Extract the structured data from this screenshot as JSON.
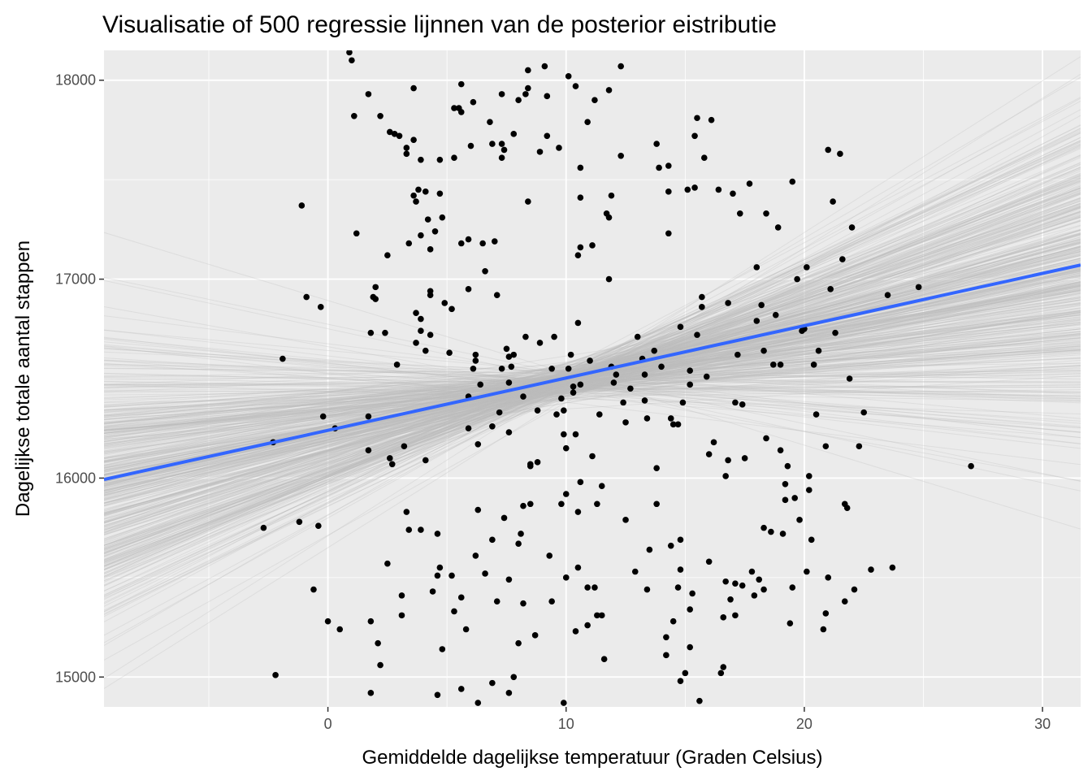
{
  "chart_data": {
    "type": "scatter",
    "title": "Visualisatie of 500 regressie lijnnen van de posterior eistributie",
    "xlabel": "Gemiddelde dagelijkse temperatuur (Graden Celsius)",
    "ylabel": "Dagelijkse totale aantal stappen",
    "xlim": [
      -9.4,
      31.6
    ],
    "ylim": [
      14850,
      18150
    ],
    "x_ticks": [
      0,
      10,
      20,
      30
    ],
    "y_ticks": [
      15000,
      16000,
      17000,
      18000
    ],
    "x_tick_labels": [
      "0",
      "10",
      "20",
      "30"
    ],
    "y_tick_labels": [
      "15000",
      "16000",
      "17000",
      "18000"
    ],
    "grid": true,
    "legend": "none",
    "colors": {
      "panel_background": "#ebebeb",
      "grid": "#ffffff",
      "points": "#000000",
      "posterior_lines": "#bebebe",
      "mean_line": "#3366ff"
    },
    "mean_line": {
      "intercept": 16240,
      "slope": 26.3
    },
    "posterior_lines": {
      "count": 500,
      "pivot_x": 10,
      "pivot_y": 16483,
      "intercept_sd": 40,
      "slope_sd": 18
    },
    "points": [
      [
        -2.7,
        15750
      ],
      [
        -2.3,
        16180
      ],
      [
        -2.2,
        15010
      ],
      [
        -1.9,
        16600
      ],
      [
        -1.2,
        15780
      ],
      [
        -1.1,
        17370
      ],
      [
        -0.9,
        16910
      ],
      [
        -0.6,
        15440
      ],
      [
        -0.4,
        15760
      ],
      [
        -0.3,
        16860
      ],
      [
        -0.2,
        16310
      ],
      [
        0.0,
        15280
      ],
      [
        0.3,
        16250
      ],
      [
        0.5,
        15240
      ],
      [
        0.9,
        18140
      ],
      [
        1.0,
        18100
      ],
      [
        1.1,
        17820
      ],
      [
        1.2,
        17230
      ],
      [
        1.7,
        16140
      ],
      [
        1.7,
        16310
      ],
      [
        1.7,
        17930
      ],
      [
        1.8,
        16730
      ],
      [
        1.8,
        15280
      ],
      [
        1.8,
        14920
      ],
      [
        1.9,
        16910
      ],
      [
        2.0,
        16960
      ],
      [
        2.0,
        16900
      ],
      [
        2.1,
        15170
      ],
      [
        2.2,
        17820
      ],
      [
        2.2,
        15060
      ],
      [
        2.4,
        16730
      ],
      [
        2.5,
        17120
      ],
      [
        2.5,
        15570
      ],
      [
        2.6,
        16100
      ],
      [
        2.6,
        17740
      ],
      [
        2.7,
        16070
      ],
      [
        2.8,
        17730
      ],
      [
        2.9,
        16570
      ],
      [
        3.0,
        17720
      ],
      [
        3.1,
        15310
      ],
      [
        3.1,
        15410
      ],
      [
        3.2,
        16160
      ],
      [
        3.3,
        15830
      ],
      [
        3.3,
        17660
      ],
      [
        3.3,
        17630
      ],
      [
        3.4,
        15740
      ],
      [
        3.4,
        17180
      ],
      [
        3.6,
        17960
      ],
      [
        3.6,
        17420
      ],
      [
        3.6,
        17700
      ],
      [
        3.7,
        16680
      ],
      [
        3.7,
        17390
      ],
      [
        3.7,
        16830
      ],
      [
        3.8,
        17450
      ],
      [
        3.9,
        16740
      ],
      [
        3.9,
        17600
      ],
      [
        3.9,
        17220
      ],
      [
        3.9,
        16800
      ],
      [
        3.9,
        15740
      ],
      [
        4.1,
        16090
      ],
      [
        4.1,
        16640
      ],
      [
        4.1,
        17440
      ],
      [
        4.2,
        17300
      ],
      [
        4.3,
        16720
      ],
      [
        4.3,
        16940
      ],
      [
        4.3,
        17150
      ],
      [
        4.3,
        16920
      ],
      [
        4.4,
        15430
      ],
      [
        4.5,
        17240
      ],
      [
        4.6,
        15720
      ],
      [
        4.6,
        15510
      ],
      [
        4.6,
        14910
      ],
      [
        4.7,
        15550
      ],
      [
        4.7,
        17430
      ],
      [
        4.7,
        17600
      ],
      [
        4.8,
        17310
      ],
      [
        4.8,
        15140
      ],
      [
        4.9,
        16880
      ],
      [
        5.1,
        16630
      ],
      [
        5.2,
        16850
      ],
      [
        5.2,
        15510
      ],
      [
        5.3,
        17610
      ],
      [
        5.3,
        17860
      ],
      [
        5.3,
        15330
      ],
      [
        5.5,
        17860
      ],
      [
        5.6,
        17180
      ],
      [
        5.6,
        15400
      ],
      [
        5.6,
        17840
      ],
      [
        5.6,
        17980
      ],
      [
        5.6,
        14940
      ],
      [
        5.8,
        15240
      ],
      [
        5.9,
        16250
      ],
      [
        5.9,
        16950
      ],
      [
        5.9,
        16410
      ],
      [
        5.9,
        17200
      ],
      [
        6.0,
        17670
      ],
      [
        6.1,
        16550
      ],
      [
        6.1,
        17890
      ],
      [
        6.2,
        16590
      ],
      [
        6.2,
        15610
      ],
      [
        6.2,
        16620
      ],
      [
        6.3,
        15840
      ],
      [
        6.3,
        14870
      ],
      [
        6.3,
        16170
      ],
      [
        6.4,
        16470
      ],
      [
        6.5,
        17180
      ],
      [
        6.6,
        17040
      ],
      [
        6.6,
        15520
      ],
      [
        6.8,
        17790
      ],
      [
        6.9,
        15690
      ],
      [
        6.9,
        16260
      ],
      [
        6.9,
        17680
      ],
      [
        6.9,
        14970
      ],
      [
        7.0,
        17190
      ],
      [
        7.1,
        16920
      ],
      [
        7.1,
        15380
      ],
      [
        7.2,
        16330
      ],
      [
        7.3,
        17930
      ],
      [
        7.3,
        16550
      ],
      [
        7.3,
        17610
      ],
      [
        7.3,
        17680
      ],
      [
        7.4,
        15800
      ],
      [
        7.4,
        17650
      ],
      [
        7.5,
        16650
      ],
      [
        7.6,
        16610
      ],
      [
        7.6,
        14920
      ],
      [
        7.6,
        16480
      ],
      [
        7.6,
        16230
      ],
      [
        7.6,
        15490
      ],
      [
        7.7,
        16560
      ],
      [
        7.8,
        17730
      ],
      [
        7.8,
        16620
      ],
      [
        7.8,
        15000
      ],
      [
        8.0,
        15670
      ],
      [
        8.0,
        15170
      ],
      [
        8.0,
        17900
      ],
      [
        8.1,
        15720
      ],
      [
        8.2,
        16410
      ],
      [
        8.2,
        15860
      ],
      [
        8.2,
        15370
      ],
      [
        8.3,
        17930
      ],
      [
        8.3,
        16710
      ],
      [
        8.4,
        17960
      ],
      [
        8.4,
        18050
      ],
      [
        8.4,
        17390
      ],
      [
        8.5,
        16060
      ],
      [
        8.5,
        15870
      ],
      [
        8.5,
        16070
      ],
      [
        8.7,
        15210
      ],
      [
        8.8,
        16340
      ],
      [
        8.8,
        16080
      ],
      [
        8.9,
        17640
      ],
      [
        8.9,
        16680
      ],
      [
        9.1,
        18070
      ],
      [
        9.2,
        17920
      ],
      [
        9.2,
        17720
      ],
      [
        9.3,
        15610
      ],
      [
        9.4,
        16550
      ],
      [
        9.4,
        15380
      ],
      [
        9.5,
        16710
      ],
      [
        9.6,
        16320
      ],
      [
        9.7,
        17660
      ],
      [
        9.8,
        16400
      ],
      [
        9.8,
        15870
      ],
      [
        9.9,
        16340
      ],
      [
        9.9,
        14870
      ],
      [
        9.9,
        16220
      ],
      [
        10.0,
        15500
      ],
      [
        10.0,
        15920
      ],
      [
        10.0,
        16150
      ],
      [
        10.1,
        18020
      ],
      [
        10.1,
        16550
      ],
      [
        10.2,
        16620
      ],
      [
        10.3,
        16460
      ],
      [
        10.3,
        16430
      ],
      [
        10.4,
        17970
      ],
      [
        10.4,
        16220
      ],
      [
        10.4,
        15230
      ],
      [
        10.5,
        15550
      ],
      [
        10.5,
        16780
      ],
      [
        10.5,
        15830
      ],
      [
        10.5,
        17120
      ],
      [
        10.6,
        17410
      ],
      [
        10.6,
        15980
      ],
      [
        10.6,
        17160
      ],
      [
        10.6,
        17560
      ],
      [
        10.6,
        16470
      ],
      [
        10.9,
        17790
      ],
      [
        10.9,
        15450
      ],
      [
        10.9,
        15260
      ],
      [
        11.0,
        16590
      ],
      [
        11.1,
        17170
      ],
      [
        11.1,
        16110
      ],
      [
        11.2,
        15450
      ],
      [
        11.2,
        17900
      ],
      [
        11.3,
        15870
      ],
      [
        11.3,
        15310
      ],
      [
        11.4,
        16320
      ],
      [
        11.5,
        15960
      ],
      [
        11.5,
        15310
      ],
      [
        11.6,
        15090
      ],
      [
        11.7,
        17330
      ],
      [
        11.8,
        17950
      ],
      [
        11.8,
        17310
      ],
      [
        11.8,
        17000
      ],
      [
        11.9,
        16560
      ],
      [
        11.9,
        17420
      ],
      [
        12.0,
        16480
      ],
      [
        12.1,
        16520
      ],
      [
        12.3,
        17620
      ],
      [
        12.3,
        18070
      ],
      [
        12.4,
        16380
      ],
      [
        12.5,
        15790
      ],
      [
        12.5,
        16280
      ],
      [
        12.7,
        16450
      ],
      [
        12.9,
        15530
      ],
      [
        13.0,
        16710
      ],
      [
        13.2,
        16600
      ],
      [
        13.3,
        16520
      ],
      [
        13.3,
        16390
      ],
      [
        13.4,
        16300
      ],
      [
        13.4,
        15440
      ],
      [
        13.5,
        15640
      ],
      [
        13.7,
        16640
      ],
      [
        13.8,
        17680
      ],
      [
        13.8,
        15870
      ],
      [
        13.8,
        16050
      ],
      [
        13.9,
        17560
      ],
      [
        14.0,
        16560
      ],
      [
        14.2,
        15200
      ],
      [
        14.2,
        15110
      ],
      [
        14.3,
        17570
      ],
      [
        14.3,
        17440
      ],
      [
        14.3,
        17230
      ],
      [
        14.4,
        16300
      ],
      [
        14.4,
        15660
      ],
      [
        14.5,
        16270
      ],
      [
        14.5,
        15280
      ],
      [
        14.7,
        16270
      ],
      [
        14.7,
        15450
      ],
      [
        14.8,
        16760
      ],
      [
        14.8,
        15690
      ],
      [
        14.8,
        15540
      ],
      [
        14.8,
        14980
      ],
      [
        14.9,
        16380
      ],
      [
        15.0,
        15020
      ],
      [
        15.1,
        17450
      ],
      [
        15.2,
        16470
      ],
      [
        15.2,
        16540
      ],
      [
        15.2,
        15340
      ],
      [
        15.2,
        15150
      ],
      [
        15.3,
        15420
      ],
      [
        15.4,
        17720
      ],
      [
        15.4,
        17460
      ],
      [
        15.5,
        17810
      ],
      [
        15.5,
        16720
      ],
      [
        15.6,
        14880
      ],
      [
        15.7,
        16860
      ],
      [
        15.7,
        16910
      ],
      [
        15.8,
        17610
      ],
      [
        15.9,
        16510
      ],
      [
        16.0,
        16120
      ],
      [
        16.0,
        15580
      ],
      [
        16.1,
        17800
      ],
      [
        16.2,
        16180
      ],
      [
        16.4,
        17450
      ],
      [
        16.5,
        15020
      ],
      [
        16.6,
        15300
      ],
      [
        16.6,
        15050
      ],
      [
        16.7,
        16010
      ],
      [
        16.7,
        15480
      ],
      [
        16.8,
        16880
      ],
      [
        16.8,
        16090
      ],
      [
        16.9,
        15390
      ],
      [
        17.0,
        17430
      ],
      [
        17.1,
        15310
      ],
      [
        17.1,
        16380
      ],
      [
        17.1,
        15470
      ],
      [
        17.2,
        16620
      ],
      [
        17.3,
        17330
      ],
      [
        17.4,
        16370
      ],
      [
        17.4,
        15460
      ],
      [
        17.5,
        16100
      ],
      [
        17.7,
        17480
      ],
      [
        17.8,
        15530
      ],
      [
        17.9,
        15410
      ],
      [
        18.0,
        16790
      ],
      [
        18.0,
        17060
      ],
      [
        18.1,
        15490
      ],
      [
        18.2,
        16870
      ],
      [
        18.3,
        16640
      ],
      [
        18.3,
        15750
      ],
      [
        18.3,
        15440
      ],
      [
        18.4,
        17330
      ],
      [
        18.4,
        16200
      ],
      [
        18.6,
        15730
      ],
      [
        18.7,
        16570
      ],
      [
        18.8,
        16820
      ],
      [
        18.9,
        17260
      ],
      [
        19.0,
        16570
      ],
      [
        19.0,
        16140
      ],
      [
        19.1,
        15720
      ],
      [
        19.2,
        15970
      ],
      [
        19.2,
        15890
      ],
      [
        19.3,
        16060
      ],
      [
        19.4,
        15270
      ],
      [
        19.5,
        17490
      ],
      [
        19.5,
        15450
      ],
      [
        19.6,
        15900
      ],
      [
        19.7,
        17000
      ],
      [
        19.8,
        15790
      ],
      [
        19.9,
        16740
      ],
      [
        20.0,
        16750
      ],
      [
        20.1,
        17060
      ],
      [
        20.1,
        15530
      ],
      [
        20.2,
        15940
      ],
      [
        20.2,
        16010
      ],
      [
        20.3,
        15690
      ],
      [
        20.4,
        16570
      ],
      [
        20.5,
        16320
      ],
      [
        20.6,
        16640
      ],
      [
        20.8,
        15240
      ],
      [
        20.9,
        16160
      ],
      [
        20.9,
        15320
      ],
      [
        21.0,
        15500
      ],
      [
        21.0,
        17650
      ],
      [
        21.1,
        16950
      ],
      [
        21.2,
        17390
      ],
      [
        21.3,
        16730
      ],
      [
        21.5,
        17630
      ],
      [
        21.6,
        17100
      ],
      [
        21.7,
        15380
      ],
      [
        21.7,
        15870
      ],
      [
        21.8,
        15850
      ],
      [
        21.9,
        16500
      ],
      [
        22.0,
        17260
      ],
      [
        22.1,
        15440
      ],
      [
        22.3,
        16160
      ],
      [
        22.5,
        16330
      ],
      [
        22.8,
        15540
      ],
      [
        23.5,
        16920
      ],
      [
        23.7,
        15550
      ],
      [
        24.8,
        16960
      ],
      [
        27.0,
        16060
      ]
    ]
  }
}
